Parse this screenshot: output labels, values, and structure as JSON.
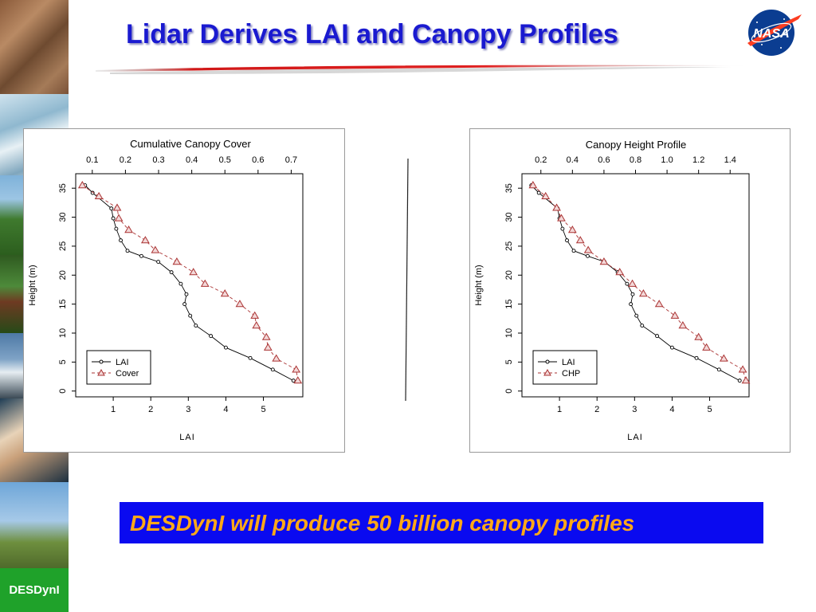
{
  "slide": {
    "title": "Lidar Derives LAI and Canopy Profiles",
    "footer_text": "DESDynI will produce 50 billion canopy profiles",
    "side_label": "DESDynI",
    "logo_text": "NASA",
    "colors": {
      "title": "#1a1ad0",
      "banner_bg": "#0a0af0",
      "banner_text": "#ffa818",
      "side_label_bg": "#1fa22a"
    }
  },
  "chart_data": [
    {
      "type": "line",
      "title": "Cumulative Canopy Cover",
      "xlabel": "LAI",
      "ylabel": "Height (m)",
      "x_ticks": [
        1,
        2,
        3,
        4,
        5
      ],
      "y_ticks": [
        0,
        5,
        10,
        15,
        20,
        25,
        30,
        35
      ],
      "top_axis_ticks": [
        "0.1",
        "0.2",
        "0.3",
        "0.4",
        "0.5",
        "0.6",
        "0.7"
      ],
      "top_axis_values": [
        0.1,
        0.2,
        0.3,
        0.4,
        0.5,
        0.6,
        0.7
      ],
      "top_axis_range": [
        0.05,
        0.735
      ],
      "xlim": [
        0.0,
        6.05
      ],
      "ylim": [
        -1,
        37.5
      ],
      "legend_position": "bottom-left",
      "series": [
        {
          "name": "LAI",
          "axis": "bottom",
          "marker": "circle",
          "color": "#000000",
          "points": [
            [
              0.25,
              35.5
            ],
            [
              0.45,
              34.2
            ],
            [
              0.95,
              31.5
            ],
            [
              1.0,
              29.8
            ],
            [
              1.08,
              28.0
            ],
            [
              1.2,
              26.0
            ],
            [
              1.38,
              24.2
            ],
            [
              1.75,
              23.3
            ],
            [
              2.2,
              22.3
            ],
            [
              2.55,
              20.5
            ],
            [
              2.8,
              18.5
            ],
            [
              2.95,
              16.7
            ],
            [
              2.9,
              15.0
            ],
            [
              3.05,
              13.0
            ],
            [
              3.2,
              11.3
            ],
            [
              3.6,
              9.5
            ],
            [
              4.0,
              7.5
            ],
            [
              4.65,
              5.7
            ],
            [
              5.25,
              3.7
            ],
            [
              5.8,
              1.8
            ]
          ]
        },
        {
          "name": "Cover",
          "axis": "top",
          "marker": "triangle",
          "color": "#aa3333",
          "points": [
            [
              0.07,
              35.5
            ],
            [
              0.12,
              33.6
            ],
            [
              0.175,
              31.6
            ],
            [
              0.18,
              29.8
            ],
            [
              0.21,
              27.8
            ],
            [
              0.26,
              26.0
            ],
            [
              0.29,
              24.3
            ],
            [
              0.355,
              22.3
            ],
            [
              0.405,
              20.5
            ],
            [
              0.44,
              18.5
            ],
            [
              0.5,
              16.8
            ],
            [
              0.545,
              15.0
            ],
            [
              0.59,
              13.0
            ],
            [
              0.595,
              11.3
            ],
            [
              0.625,
              9.3
            ],
            [
              0.63,
              7.5
            ],
            [
              0.655,
              5.6
            ],
            [
              0.715,
              3.7
            ],
            [
              0.72,
              1.8
            ]
          ]
        }
      ]
    },
    {
      "type": "line",
      "title": "Canopy Height Profile",
      "xlabel": "LAI",
      "ylabel": "Height (m)",
      "x_ticks": [
        1,
        2,
        3,
        4,
        5
      ],
      "y_ticks": [
        0,
        5,
        10,
        15,
        20,
        25,
        30,
        35
      ],
      "top_axis_ticks": [
        "0.2",
        "0.4",
        "0.6",
        "0.8",
        "1.0",
        "1.2",
        "1.4"
      ],
      "top_axis_values": [
        0.2,
        0.4,
        0.6,
        0.8,
        1.0,
        1.2,
        1.4
      ],
      "top_axis_range": [
        0.08,
        1.52
      ],
      "xlim": [
        0.0,
        6.05
      ],
      "ylim": [
        -1,
        37.5
      ],
      "legend_position": "bottom-left",
      "series": [
        {
          "name": "LAI",
          "axis": "bottom",
          "marker": "circle",
          "color": "#000000",
          "points": [
            [
              0.25,
              35.5
            ],
            [
              0.45,
              34.2
            ],
            [
              0.95,
              31.5
            ],
            [
              1.0,
              29.8
            ],
            [
              1.08,
              28.0
            ],
            [
              1.2,
              26.0
            ],
            [
              1.38,
              24.2
            ],
            [
              1.75,
              23.3
            ],
            [
              2.2,
              22.3
            ],
            [
              2.55,
              20.5
            ],
            [
              2.8,
              18.5
            ],
            [
              2.95,
              16.7
            ],
            [
              2.9,
              15.0
            ],
            [
              3.05,
              13.0
            ],
            [
              3.2,
              11.3
            ],
            [
              3.6,
              9.5
            ],
            [
              4.0,
              7.5
            ],
            [
              4.65,
              5.7
            ],
            [
              5.25,
              3.7
            ],
            [
              5.8,
              1.8
            ]
          ]
        },
        {
          "name": "CHP",
          "axis": "top",
          "marker": "triangle",
          "color": "#aa3333",
          "points": [
            [
              0.15,
              35.5
            ],
            [
              0.23,
              33.6
            ],
            [
              0.3,
              31.6
            ],
            [
              0.33,
              29.8
            ],
            [
              0.4,
              27.8
            ],
            [
              0.45,
              26.0
            ],
            [
              0.5,
              24.3
            ],
            [
              0.6,
              22.3
            ],
            [
              0.7,
              20.5
            ],
            [
              0.78,
              18.5
            ],
            [
              0.85,
              16.8
            ],
            [
              0.95,
              15.0
            ],
            [
              1.05,
              13.0
            ],
            [
              1.1,
              11.3
            ],
            [
              1.2,
              9.3
            ],
            [
              1.25,
              7.5
            ],
            [
              1.36,
              5.6
            ],
            [
              1.48,
              3.7
            ],
            [
              1.5,
              1.8
            ]
          ]
        }
      ]
    }
  ]
}
